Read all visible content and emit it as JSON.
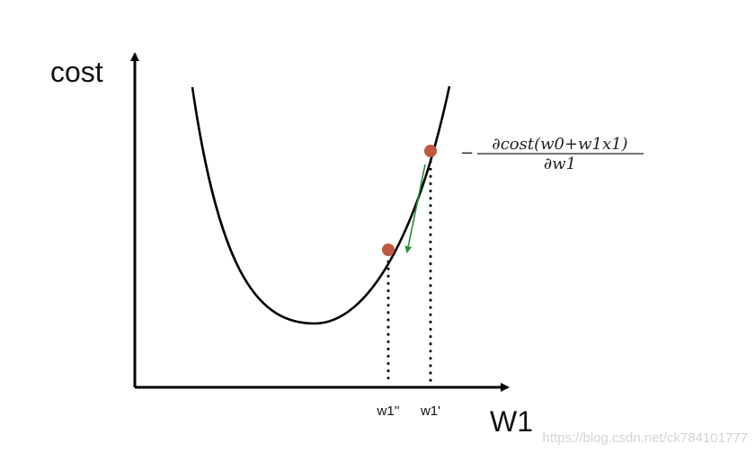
{
  "diagram": {
    "y_axis_label": "cost",
    "x_axis_label": "W1",
    "x_tick_labels": {
      "w1_new": "w1''",
      "w1_old": "w1'"
    },
    "gradient_formula": {
      "sign": "−",
      "numerator": "∂cost(w0+w1x1)",
      "denominator": "∂w1"
    },
    "colors": {
      "curve": "#000000",
      "axes": "#000000",
      "points": "#c0573e",
      "gradient_arrow": "#2e8b3c",
      "dotted_guides": "#000000"
    }
  },
  "watermark": "https://blog.csdn.net/ck784101777"
}
